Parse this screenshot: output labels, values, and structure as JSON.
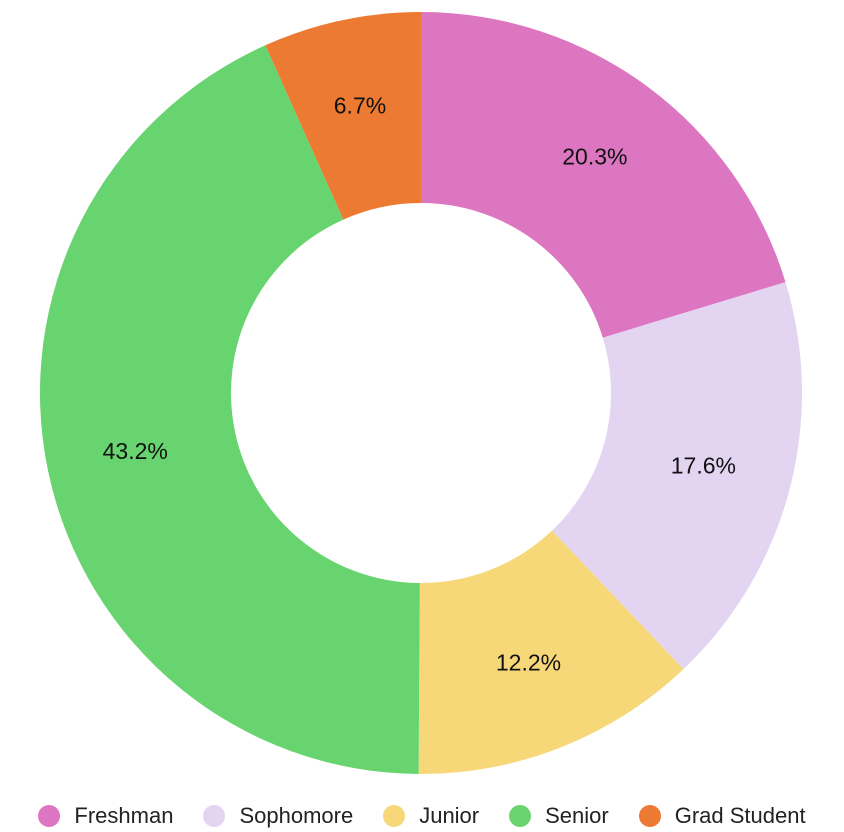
{
  "chart_data": {
    "type": "donut",
    "categories": [
      "Freshman",
      "Sophomore",
      "Junior",
      "Senior",
      "Grad Student"
    ],
    "values": [
      20.3,
      17.6,
      12.2,
      43.2,
      6.7
    ],
    "value_labels": [
      "20.3%",
      "17.6%",
      "12.2%",
      "43.2%",
      "6.7%"
    ],
    "colors": [
      "#dc76c1",
      "#e3d5f2",
      "#f7d878",
      "#68d470",
      "#ec7a33"
    ],
    "legend": "bottom"
  }
}
